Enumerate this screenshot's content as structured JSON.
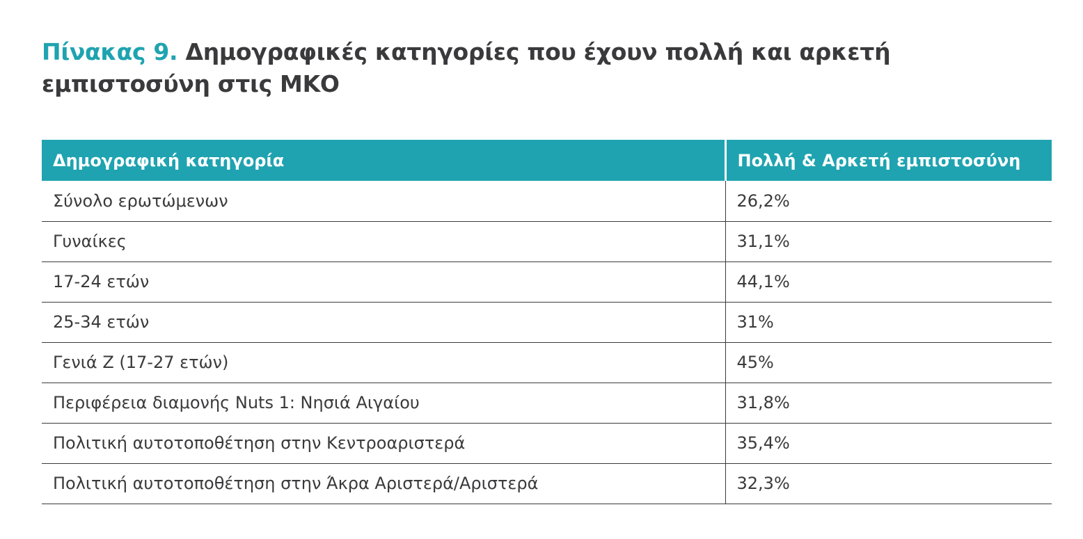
{
  "title": {
    "prefix": "Πίνακας 9.",
    "text": "Δημογραφικές κατηγορίες που έχουν πολλή και αρκετή εμπιστοσύνη στις ΜΚΟ"
  },
  "colors": {
    "accent": "#1fa3b0",
    "text": "#3a3a3c"
  },
  "table": {
    "headers": [
      "Δημογραφική κατηγορία",
      "Πολλή & Αρκετή εμπιστοσύνη"
    ],
    "rows": [
      [
        "Σύνολο ερωτώμενων",
        "26,2%"
      ],
      [
        "Γυναίκες",
        "31,1%"
      ],
      [
        "17-24 ετών",
        "44,1%"
      ],
      [
        "25-34 ετών",
        "31%"
      ],
      [
        "Γενιά Ζ (17-27 ετών)",
        "45%"
      ],
      [
        "Περιφέρεια διαμονής Nuts 1: Νησιά Αιγαίου",
        "31,8%"
      ],
      [
        "Πολιτική αυτοτοποθέτηση στην Κεντροαριστερά",
        "35,4%"
      ],
      [
        "Πολιτική αυτοτοποθέτηση στην Άκρα Αριστερά/Αριστερά",
        "32,3%"
      ]
    ]
  }
}
